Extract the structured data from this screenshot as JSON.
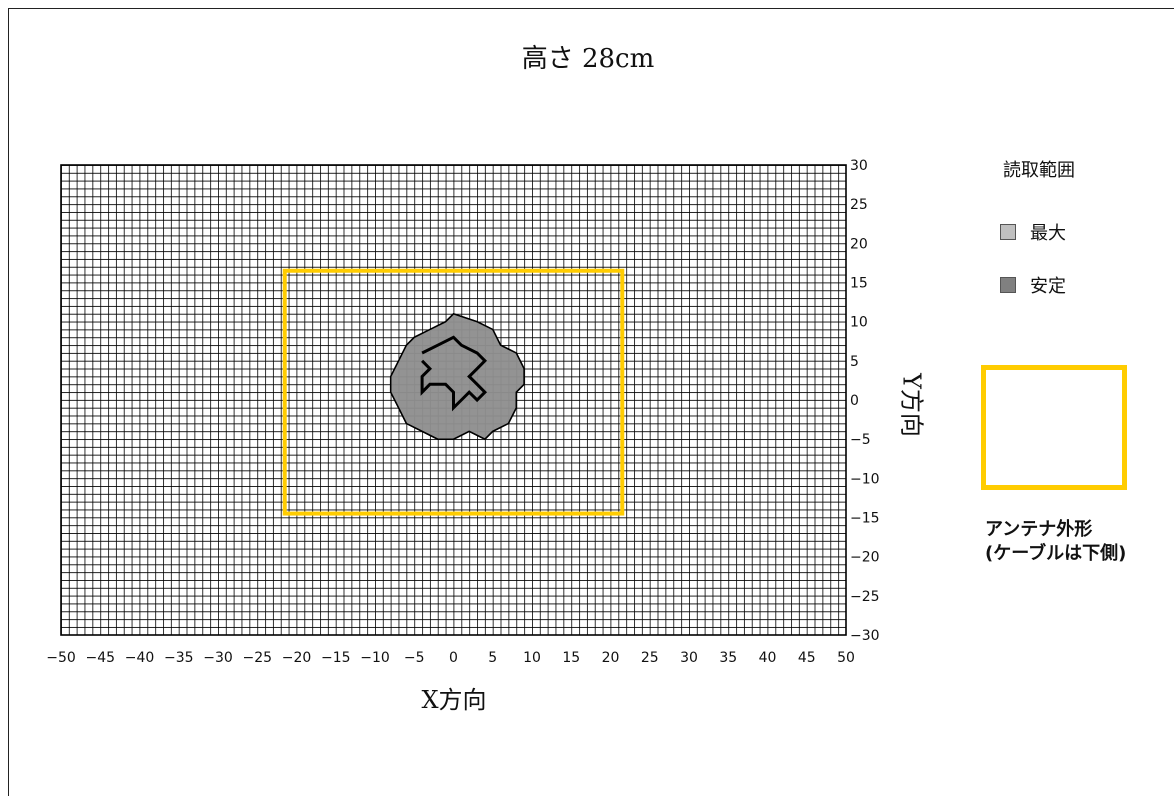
{
  "chart_data": {
    "type": "heatmap",
    "title": "高さ 28cm",
    "xlabel": "X方向",
    "ylabel": "Y方向",
    "xlim": [
      -50,
      50
    ],
    "ylim": [
      -30,
      30
    ],
    "x_ticks": [
      -50,
      -45,
      -40,
      -35,
      -30,
      -25,
      -20,
      -15,
      -10,
      -5,
      0,
      5,
      10,
      15,
      20,
      25,
      30,
      35,
      40,
      45,
      50
    ],
    "y_ticks": [
      30,
      25,
      20,
      15,
      10,
      5,
      0,
      -5,
      -10,
      -15,
      -20,
      -25,
      -30
    ],
    "grid": true,
    "grid_step": 1,
    "legend": {
      "title": "読取範囲",
      "placement": "right",
      "items": [
        {
          "label": "最大",
          "color": "#C0C0C0"
        },
        {
          "label": "安定",
          "color": "#808080"
        }
      ]
    },
    "antenna": {
      "label_line1": "アンテナ外形",
      "label_line2": "(ケーブルは下側)",
      "color": "#FFCC00",
      "x_range": [
        -21.5,
        21.5
      ],
      "y_range": [
        -14.5,
        16.5
      ]
    },
    "regions": {
      "max_range_outline": [
        [
          0,
          11
        ],
        [
          3,
          10
        ],
        [
          5,
          9
        ],
        [
          6,
          7
        ],
        [
          8,
          6
        ],
        [
          9,
          4
        ],
        [
          9,
          2
        ],
        [
          8,
          1
        ],
        [
          8,
          -1
        ],
        [
          7,
          -3
        ],
        [
          5,
          -4
        ],
        [
          4,
          -5
        ],
        [
          2,
          -4
        ],
        [
          0,
          -5
        ],
        [
          -2,
          -5
        ],
        [
          -4,
          -4
        ],
        [
          -6,
          -3
        ],
        [
          -7,
          -1
        ],
        [
          -8,
          1
        ],
        [
          -8,
          3
        ],
        [
          -7,
          5
        ],
        [
          -6,
          7
        ],
        [
          -5,
          8
        ],
        [
          -3,
          9
        ],
        [
          -1,
          10
        ]
      ],
      "stable_range_outline": [
        [
          0,
          11
        ],
        [
          3,
          10
        ],
        [
          5,
          9
        ],
        [
          6,
          7
        ],
        [
          8,
          6
        ],
        [
          9,
          4
        ],
        [
          9,
          2
        ],
        [
          8,
          1
        ],
        [
          8,
          -1
        ],
        [
          7,
          -3
        ],
        [
          5,
          -4
        ],
        [
          4,
          -5
        ],
        [
          2,
          -4
        ],
        [
          0,
          -5
        ],
        [
          -2,
          -5
        ],
        [
          -4,
          -4
        ],
        [
          -6,
          -3
        ],
        [
          -7,
          -1
        ],
        [
          -8,
          1
        ],
        [
          -8,
          3
        ],
        [
          -7,
          5
        ],
        [
          -6,
          7
        ],
        [
          -5,
          8
        ],
        [
          -3,
          9
        ],
        [
          -1,
          10
        ]
      ],
      "inner_pattern_points": [
        [
          -4,
          6
        ],
        [
          -2,
          7
        ],
        [
          0,
          8
        ],
        [
          1,
          7
        ],
        [
          3,
          6
        ],
        [
          4,
          5
        ],
        [
          3,
          4
        ],
        [
          2,
          3
        ],
        [
          3,
          2
        ],
        [
          4,
          1
        ],
        [
          3,
          0
        ],
        [
          2,
          1
        ],
        [
          1,
          0
        ],
        [
          0,
          -1
        ],
        [
          0,
          1
        ],
        [
          -1,
          2
        ],
        [
          -3,
          2
        ],
        [
          -4,
          1
        ],
        [
          -4,
          3
        ],
        [
          -3,
          4
        ],
        [
          -4,
          5
        ]
      ]
    }
  }
}
